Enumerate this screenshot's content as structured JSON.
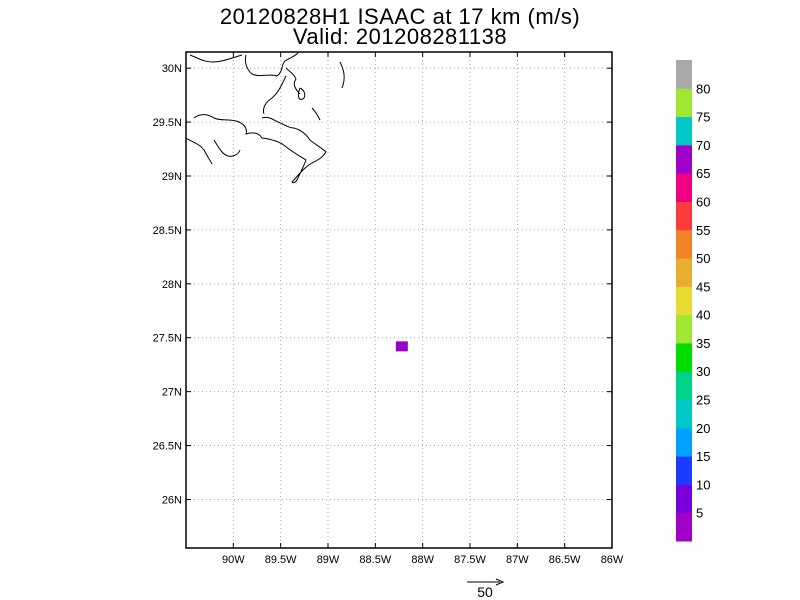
{
  "title": "20120828H1 ISAAC at 17 km (m/s)",
  "subtitle": "Valid: 201208281138",
  "map": {
    "lon_range": [
      -90.5,
      -86
    ],
    "lat_range": [
      25.55,
      30.15
    ],
    "lon_ticks": [
      "90W",
      "89.5W",
      "89W",
      "88.5W",
      "88W",
      "87.5W",
      "87W",
      "86.5W",
      "86W"
    ],
    "lat_ticks": [
      "30N",
      "29.5N",
      "29N",
      "28.5N",
      "28N",
      "27.5N",
      "27N",
      "26.5N",
      "26N"
    ],
    "grid": "dotted",
    "data_cell": {
      "lon": -88.22,
      "lat": 27.42,
      "color": "#9900cc"
    }
  },
  "colorbar": {
    "labels": [
      "5",
      "10",
      "15",
      "20",
      "25",
      "30",
      "35",
      "40",
      "45",
      "50",
      "55",
      "60",
      "65",
      "70",
      "75",
      "80"
    ],
    "colors": [
      "#a000c8",
      "#7800dc",
      "#1e3cff",
      "#00a0ff",
      "#00c8c8",
      "#00d28c",
      "#00dc00",
      "#a0e632",
      "#e6dc32",
      "#e6af2d",
      "#f08228",
      "#fa3c3c",
      "#f00082",
      "#a000c8",
      "#00c8c8",
      "#a0e632",
      "#aaaaaa"
    ]
  },
  "vector_scale": {
    "label": "50"
  }
}
